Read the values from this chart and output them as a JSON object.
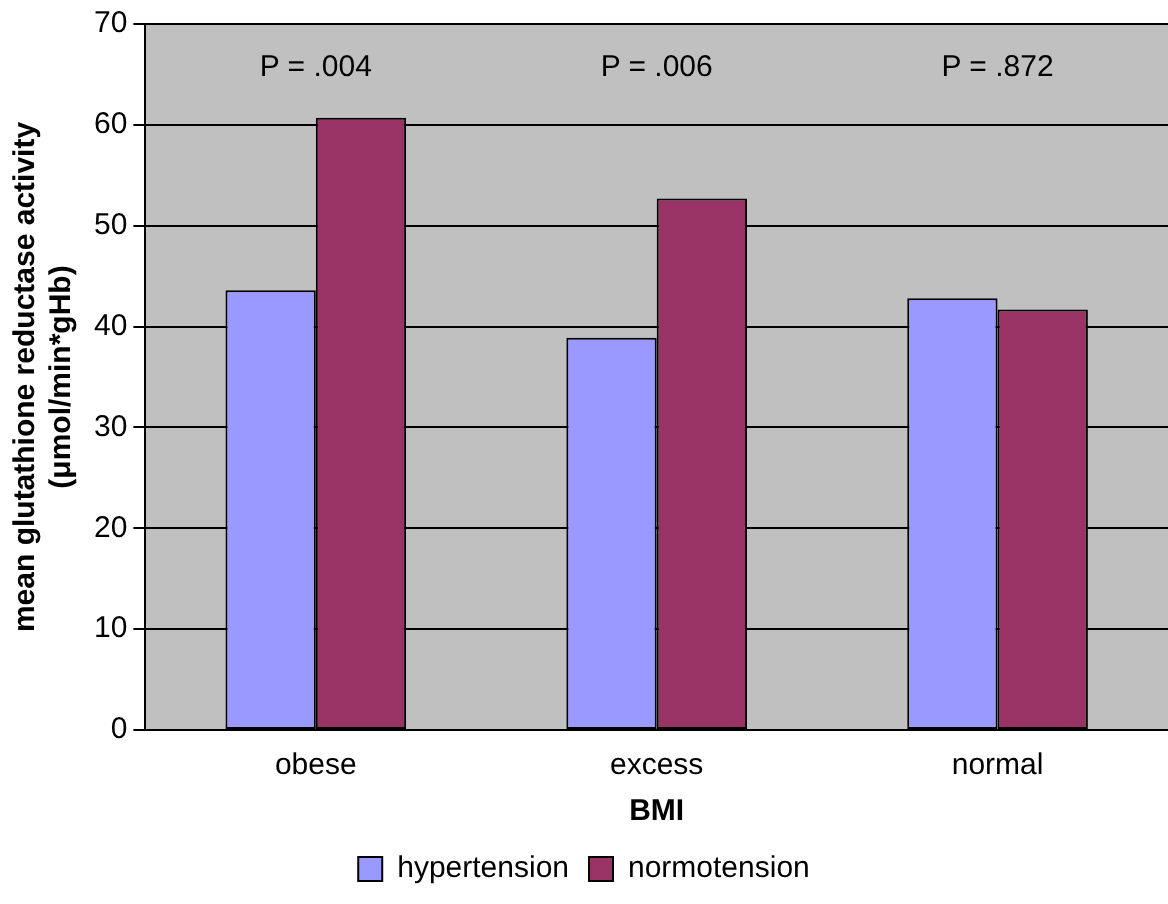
{
  "chart_data": {
    "type": "bar",
    "xlabel": "BMI",
    "ylabel": "mean glutathione reductase activity (μmol/min*gHb)",
    "categories": [
      "obese",
      "excess",
      "normal"
    ],
    "series": [
      {
        "name": "hypertension",
        "color": "#9999ff",
        "values": [
          43.6,
          38.9,
          42.8
        ]
      },
      {
        "name": "normotension",
        "color": "#993366",
        "values": [
          60.7,
          52.7,
          41.7
        ]
      }
    ],
    "ylim": [
      0,
      70
    ],
    "yticks": [
      0,
      10,
      20,
      30,
      40,
      50,
      60,
      70
    ],
    "grid": "y",
    "legend": "bottom",
    "annotations": [
      "P = .004",
      "P = .006",
      "P = .872"
    ]
  }
}
